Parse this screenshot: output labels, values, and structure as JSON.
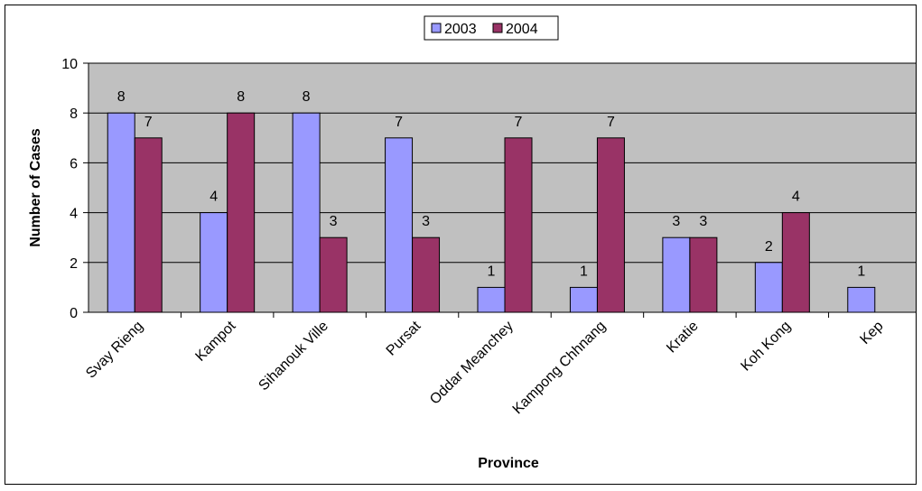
{
  "chart_data": {
    "type": "bar",
    "title": "",
    "xlabel": "Province",
    "ylabel": "Number of Cases",
    "ylim": [
      0,
      10
    ],
    "yticks": [
      0,
      2,
      4,
      6,
      8,
      10
    ],
    "grid": true,
    "legend_position": "top-center",
    "categories": [
      "Svay Rieng",
      "Kampot",
      "Sihanouk Ville",
      "Pursat",
      "Oddar Meanchey",
      "Kampong Chhnang",
      "Kratie",
      "Koh Kong",
      "Kep"
    ],
    "series": [
      {
        "name": "2003",
        "color": "#9999ff",
        "values": [
          8,
          4,
          8,
          7,
          1,
          1,
          3,
          2,
          1
        ]
      },
      {
        "name": "2004",
        "color": "#993366",
        "values": [
          7,
          8,
          3,
          3,
          7,
          7,
          3,
          4,
          null
        ]
      }
    ],
    "plot_background": "#c0c0c0"
  }
}
